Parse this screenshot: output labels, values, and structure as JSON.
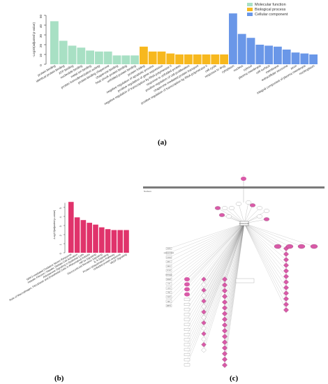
{
  "panels": {
    "a": "(a)",
    "b": "(b)",
    "c": "(c)"
  },
  "chart_data": [
    {
      "type": "bar",
      "panel": "a",
      "ylabel": "-Log10(adjusted p-value)",
      "ylim": [
        0,
        50
      ],
      "yticks": [
        0,
        10,
        20,
        30,
        40,
        50
      ],
      "legend_position": "top-right",
      "series": [
        {
          "name": "Molecular function",
          "color": "#a8e0c4",
          "categories": [
            "protein binding",
            "identical protein binding",
            "ATP binding",
            "nucleotide binding",
            "metal ion binding",
            "protein homodimerization activity",
            "protein binding chaperone",
            "chaperone binding",
            "heat shock protein binding",
            "unfolded protein binding"
          ],
          "values": [
            44,
            24,
            19,
            17,
            14,
            13,
            13,
            9,
            9,
            9
          ]
        },
        {
          "name": "Biological process",
          "color": "#f7b81e",
          "categories": [
            "protein folding",
            "negative regulation of apoptotic process",
            "positive regulation of gene expression",
            "negative regulation of transcription by RNA polymerase II",
            "response to unfolded protein",
            "positive regulation of cell proliferation",
            "chaperone-mediated protein transport",
            "positive regulation of transcription by RNA polymerase II",
            "cell cycle",
            "response to drug"
          ],
          "values": [
            18,
            13,
            13,
            11,
            10,
            10,
            10,
            10,
            10,
            10
          ]
        },
        {
          "name": "Cellular component",
          "color": "#6a97e8",
          "categories": [
            "cytoplasm",
            "nucleus",
            "cytosol",
            "plasma membrane",
            "cell surface",
            "membrane",
            "extracellular exosome",
            "axon",
            "integral component of plasma membrane",
            "nucleoplasm"
          ],
          "values": [
            52,
            31,
            27,
            20,
            19,
            18,
            15,
            12,
            11,
            10
          ]
        }
      ]
    },
    {
      "type": "bar",
      "panel": "b",
      "ylabel": "-Log10(adjusted p-value)",
      "ylim": [
        0,
        6
      ],
      "yticks": [
        0,
        1,
        2,
        3,
        4,
        5
      ],
      "color": "#e0336b",
      "categories": [
        "NRF2-mediated Oxidative Stress Response",
        "Hepatic Fibrosis / Hepatic Stellate Cell Activation",
        "Aldosterone Signaling in Epithelial Cells",
        "Role of Macrophages, Fibroblasts and Endothelial Cells in Rheumatoid Arthritis",
        "HIF1α Signaling",
        "Glucocorticoid Receptor Signaling",
        "IL-6 Signaling",
        "Protein Ubiquitination Pathway",
        "Unfolded protein response",
        "VEGF Signaling"
      ],
      "values": [
        5.6,
        3.9,
        3.6,
        3.3,
        3.1,
        2.8,
        2.6,
        2.5,
        2.5,
        2.5
      ]
    }
  ],
  "network": {
    "compartment_label": "Nucleus",
    "hub_label": "HSPA1A/HSPA1B",
    "small_labels": [
      "EGFR",
      "HSPA1A/HSPA1B",
      "CTNNB1",
      "AKT1",
      "BAG3",
      "STUB1",
      "HSP90AA1",
      "ERBB2",
      "JUN",
      "CDK4",
      "TP53",
      "STAT3",
      "RAF1",
      "MAPK1",
      "HSF1",
      "NFKB1",
      "CDC37",
      "PTGES3",
      "SGT1",
      "CHIP",
      "FOXO3",
      "HDAC6"
    ],
    "node_color": "#d95aa8",
    "grid_caption": "Nucleus"
  }
}
